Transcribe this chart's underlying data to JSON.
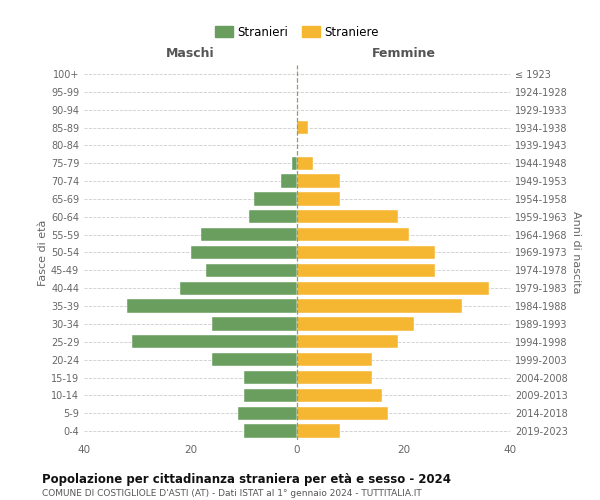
{
  "age_groups": [
    "0-4",
    "5-9",
    "10-14",
    "15-19",
    "20-24",
    "25-29",
    "30-34",
    "35-39",
    "40-44",
    "45-49",
    "50-54",
    "55-59",
    "60-64",
    "65-69",
    "70-74",
    "75-79",
    "80-84",
    "85-89",
    "90-94",
    "95-99",
    "100+"
  ],
  "birth_years": [
    "2019-2023",
    "2014-2018",
    "2009-2013",
    "2004-2008",
    "1999-2003",
    "1994-1998",
    "1989-1993",
    "1984-1988",
    "1979-1983",
    "1974-1978",
    "1969-1973",
    "1964-1968",
    "1959-1963",
    "1954-1958",
    "1949-1953",
    "1944-1948",
    "1939-1943",
    "1934-1938",
    "1929-1933",
    "1924-1928",
    "≤ 1923"
  ],
  "maschi": [
    10,
    11,
    10,
    10,
    16,
    31,
    16,
    32,
    22,
    17,
    20,
    18,
    9,
    8,
    3,
    1,
    0,
    0,
    0,
    0,
    0
  ],
  "femmine": [
    8,
    17,
    16,
    14,
    14,
    19,
    22,
    31,
    36,
    26,
    26,
    21,
    19,
    8,
    8,
    3,
    0,
    2,
    0,
    0,
    0
  ],
  "color_maschi": "#6a9e5e",
  "color_femmine": "#f5b731",
  "title": "Popolazione per cittadinanza straniera per età e sesso - 2024",
  "subtitle": "COMUNE DI COSTIGLIOLE D'ASTI (AT) - Dati ISTAT al 1° gennaio 2024 - TUTTITALIA.IT",
  "ylabel_left": "Fasce di età",
  "ylabel_right": "Anni di nascita",
  "xlabel_left": "Maschi",
  "xlabel_right": "Femmine",
  "legend_maschi": "Stranieri",
  "legend_femmine": "Straniere",
  "xlim": 40,
  "background_color": "#ffffff",
  "grid_color": "#cccccc"
}
